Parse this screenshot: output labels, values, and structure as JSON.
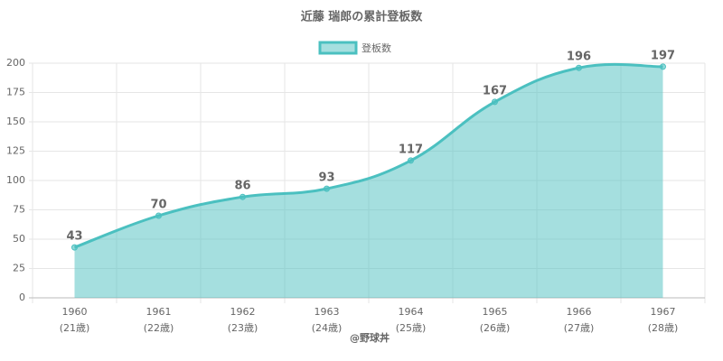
{
  "chart_data": {
    "type": "area",
    "title": "近藤 瑞郎の累計登板数",
    "categories": [
      "1960",
      "1961",
      "1962",
      "1963",
      "1964",
      "1965",
      "1966",
      "1967"
    ],
    "ages": [
      "(21歳)",
      "(22歳)",
      "(23歳)",
      "(24歳)",
      "(25歳)",
      "(26歳)",
      "(27歳)",
      "(28歳)"
    ],
    "series": [
      {
        "name": "登板数",
        "color": "#4bc0c0",
        "values": [
          43,
          70,
          86,
          93,
          117,
          167,
          196,
          197
        ]
      }
    ],
    "ylim": [
      0,
      200
    ],
    "yticks": [
      0,
      25,
      50,
      75,
      100,
      125,
      150,
      175,
      200
    ],
    "grid": true,
    "legend": "top",
    "credit": "@野球丼"
  }
}
